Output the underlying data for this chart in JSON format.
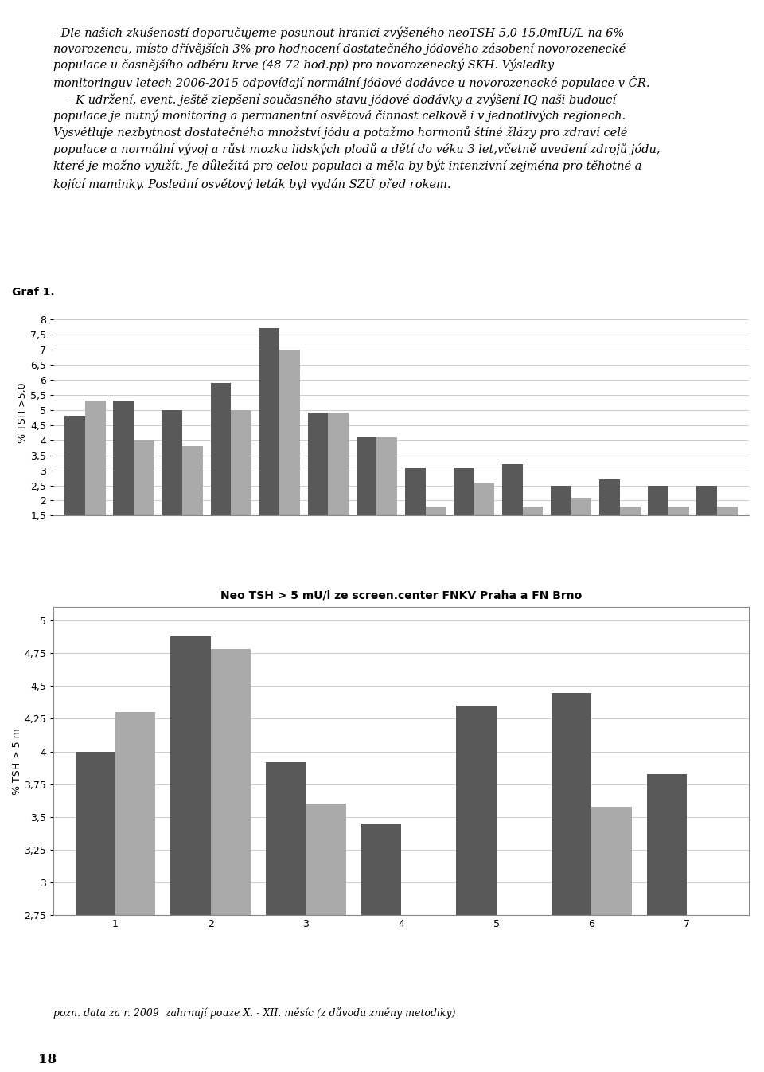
{
  "text_lines": [
    "- Dle našich zkušeností doporučujeme posunout hranici zvýšeného neoTSH 5,0-15,0mIU/L na 6%",
    "novorozencu, místo dřívějších 3% pro hodnocení dostatečného jódového zásobení novorozenecké",
    "populace u časnějšího odběru krve (48-72 hod.pp) pro novorozenecký SKH. Výsledky",
    "monitoringuv letech 2006-2015 odpovídají normální jódové dodávce u novorozenecké populace v ČR.",
    "    - K udržení, event. ještě zlepšení současného stavu jódové dodávky a zvýšení IQ naši budoucí",
    "populace je nutný monitoring a permanentní osvětová činnost celkově i v jednotlivých regionech.",
    "Vysvětluje nezbytnost dostatečného množství jódu a potažmo hormonů štíné žlázy pro zdraví celé",
    "populace a normální vývoj a růst mozku lidských plodů a dětí do věku 3 let,včetně uvedení zdrojů jódu,",
    "které je možno využít. Je důležitá pro celou populaci a měla by být intenzivní zejména pro těhotné a",
    "kojící maminky. Poslední osvětový leták byl vydán SZÚ před rokem."
  ],
  "chart1_title": "Graf 1.",
  "chart1_ylabel": "% TSH >5,0",
  "chart1_ylim": [
    1.5,
    8.3
  ],
  "chart1_yticks": [
    1.5,
    2.0,
    2.5,
    3.0,
    3.5,
    4.0,
    4.5,
    5.0,
    5.5,
    6.0,
    6.5,
    7.0,
    7.5,
    8.0
  ],
  "chart1_ytick_labels": [
    "1,5",
    "2",
    "2,5",
    "3",
    "3,5",
    "4",
    "4,5",
    "5",
    "5,5",
    "6",
    "6,5",
    "7",
    "7,5",
    "8"
  ],
  "chart1_dark_values": [
    4.8,
    5.3,
    5.0,
    5.9,
    7.7,
    4.9,
    4.1,
    3.1,
    3.1,
    3.2,
    2.5,
    2.7,
    2.5,
    2.5
  ],
  "chart1_light_values": [
    5.3,
    4.0,
    3.8,
    5.0,
    7.0,
    4.9,
    4.1,
    1.8,
    2.6,
    1.8,
    2.1,
    1.8,
    1.8,
    1.8
  ],
  "chart1_dark_color": "#595959",
  "chart1_light_color": "#aaaaaa",
  "chart2_title": "Neo TSH > 5 mU/l ze screen.center FNKV Praha a FN Brno",
  "chart2_ylabel": "% TSH > 5 m",
  "chart2_ylim": [
    2.75,
    5.1
  ],
  "chart2_yticks": [
    2.75,
    3.0,
    3.25,
    3.5,
    3.75,
    4.0,
    4.25,
    4.5,
    4.75,
    5.0
  ],
  "chart2_ytick_labels": [
    "2,75",
    "3",
    "3,25",
    "3,5",
    "3,75",
    "4",
    "4,25",
    "4,5",
    "4,75",
    "5"
  ],
  "chart2_categories": [
    "1",
    "2",
    "3",
    "4",
    "5",
    "6",
    "7"
  ],
  "chart2_dark_values": [
    4.0,
    4.88,
    3.92,
    3.45,
    4.35,
    4.45,
    3.83
  ],
  "chart2_light_values": [
    4.3,
    4.78,
    3.6,
    null,
    null,
    3.58,
    null
  ],
  "chart2_dark_color": "#595959",
  "chart2_light_color": "#aaaaaa",
  "footnote": "pozn. data za r. 2009  zahrnují pouze X. - XII. měsíc (z důvodu změny metodiky)",
  "page_number": "18",
  "background_color": "#ffffff",
  "font_size_text": 10.5,
  "font_size_axis": 9,
  "font_size_title": 10
}
